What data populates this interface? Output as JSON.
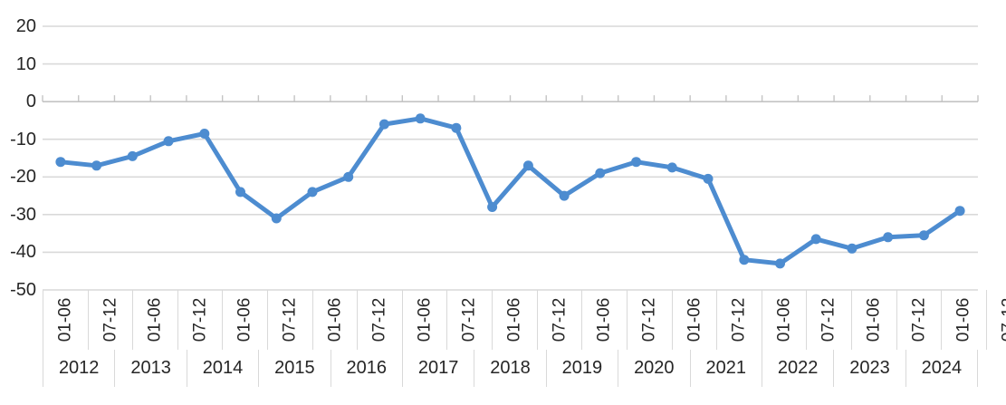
{
  "chart_data": {
    "type": "line",
    "title": "",
    "xlabel": "",
    "ylabel": "",
    "ylim": [
      -50,
      20
    ],
    "yticks": [
      20,
      10,
      0,
      -10,
      -20,
      -30,
      -40,
      -50
    ],
    "grid": true,
    "legend": false,
    "marker": "circle",
    "half_period_labels": [
      "01-06",
      "07-12"
    ],
    "years": [
      "2012",
      "2013",
      "2014",
      "2015",
      "2016",
      "2017",
      "2018",
      "2019",
      "2020",
      "2021",
      "2022",
      "2023",
      "2024"
    ],
    "x_categories": [
      "2012 01-06",
      "2012 07-12",
      "2013 01-06",
      "2013 07-12",
      "2014 01-06",
      "2014 07-12",
      "2015 01-06",
      "2015 07-12",
      "2016 01-06",
      "2016 07-12",
      "2017 01-06",
      "2017 07-12",
      "2018 01-06",
      "2018 07-12",
      "2019 01-06",
      "2019 07-12",
      "2020 01-06",
      "2020 07-12",
      "2021 01-06",
      "2021 07-12",
      "2022 01-06",
      "2022 07-12",
      "2023 01-06",
      "2023 07-12",
      "2024 01-06",
      "2024 07-12"
    ],
    "values": [
      -16,
      -17,
      -14.5,
      -10.5,
      -8.5,
      -24,
      -31,
      -24,
      -20,
      -6,
      -4.5,
      -7,
      -28,
      -17,
      -25,
      -19,
      -16,
      -17.5,
      -20.5,
      -42,
      -43,
      -36.5,
      -39,
      -36,
      -35.5,
      -29
    ],
    "colors": {
      "line": "#4D8CD0",
      "gridline": "#D9D9D9",
      "axis_line": "#C4C4C4",
      "label_text": "#262626",
      "background": "#FFFFFF"
    }
  }
}
